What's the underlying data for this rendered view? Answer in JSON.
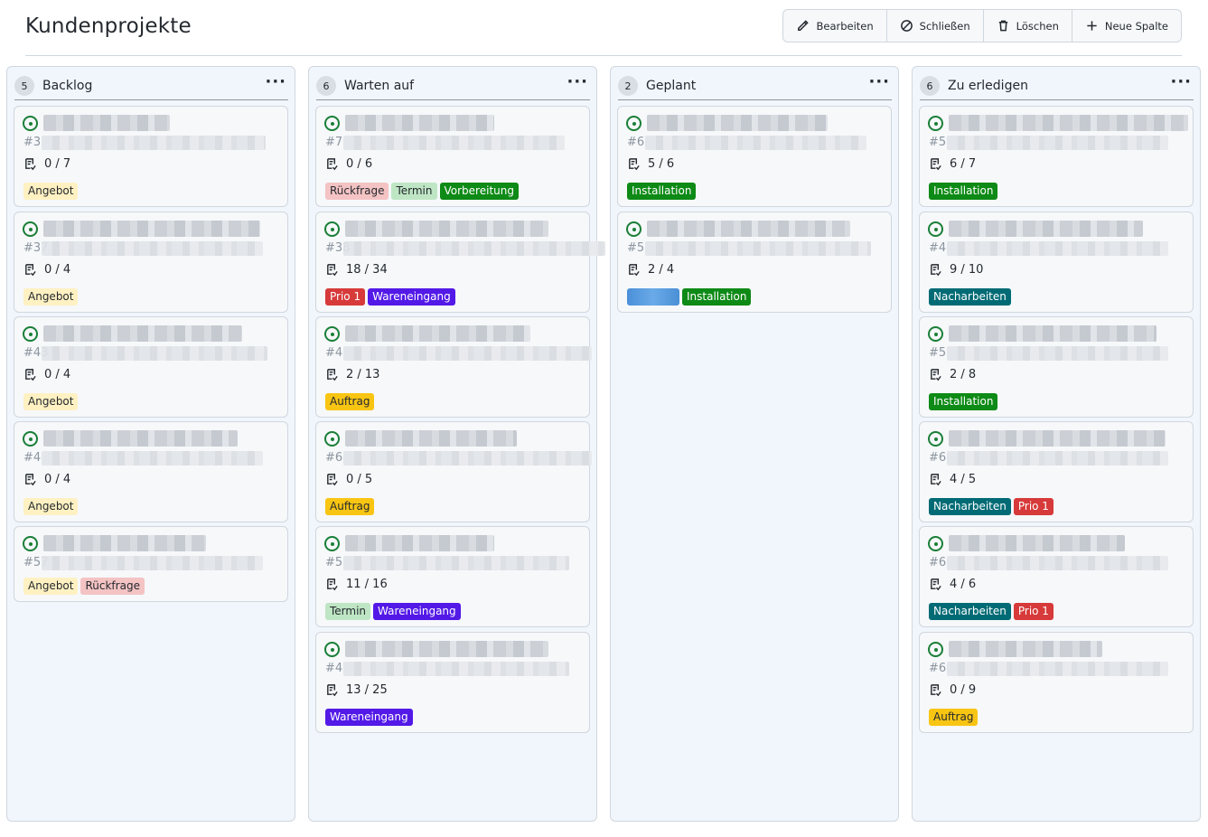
{
  "title": "Kundenprojekte",
  "toolbar": {
    "edit": "Bearbeiten",
    "close": "Schließen",
    "delete": "Löschen",
    "new_column": "Neue Spalte"
  },
  "columns": [
    {
      "name": "Backlog",
      "count": "5",
      "cards": [
        {
          "num": "#3",
          "tasks": "0 / 7",
          "labels": [
            {
              "text": "Angebot",
              "cls": "l-angebot"
            }
          ]
        },
        {
          "num": "#37",
          "tasks": "0 / 4",
          "labels": [
            {
              "text": "Angebot",
              "cls": "l-angebot"
            }
          ]
        },
        {
          "num": "#43",
          "tasks": "0 / 4",
          "labels": [
            {
              "text": "Angebot",
              "cls": "l-angebot"
            }
          ]
        },
        {
          "num": "#4",
          "tasks": "0 / 4",
          "labels": [
            {
              "text": "Angebot",
              "cls": "l-angebot"
            }
          ]
        },
        {
          "num": "#57",
          "tasks": "",
          "labels": [
            {
              "text": "Angebot",
              "cls": "l-angebot"
            },
            {
              "text": "Rückfrage",
              "cls": "l-rueckfrage"
            }
          ]
        }
      ]
    },
    {
      "name": "Warten auf",
      "count": "6",
      "cards": [
        {
          "num": "#7",
          "tasks": "0 / 6",
          "labels": [
            {
              "text": "Rückfrage",
              "cls": "l-rueckfrage"
            },
            {
              "text": "Termin",
              "cls": "l-termin"
            },
            {
              "text": "Vorbereitung",
              "cls": "l-vorbereitung"
            }
          ]
        },
        {
          "num": "#38",
          "tasks": "18 / 34",
          "labels": [
            {
              "text": "Prio 1",
              "cls": "l-prio1"
            },
            {
              "text": "Wareneingang",
              "cls": "l-wareneingang"
            }
          ]
        },
        {
          "num": "#4",
          "tasks": "2 / 13",
          "labels": [
            {
              "text": "Auftrag",
              "cls": "l-auftrag"
            }
          ]
        },
        {
          "num": "#6",
          "tasks": "0 / 5",
          "labels": [
            {
              "text": "Auftrag",
              "cls": "l-auftrag"
            }
          ]
        },
        {
          "num": "#5",
          "tasks": "11 / 16",
          "labels": [
            {
              "text": "Termin",
              "cls": "l-termin"
            },
            {
              "text": "Wareneingang",
              "cls": "l-wareneingang"
            }
          ]
        },
        {
          "num": "#4",
          "tasks": "13 / 25",
          "labels": [
            {
              "text": "Wareneingang",
              "cls": "l-wareneingang"
            }
          ]
        }
      ]
    },
    {
      "name": "Geplant",
      "count": "2",
      "cards": [
        {
          "num": "#6",
          "tasks": "5 / 6",
          "labels": [
            {
              "text": "Installation",
              "cls": "l-installation"
            }
          ]
        },
        {
          "num": "#5",
          "tasks": "2 / 4",
          "labels": [
            {
              "text": "",
              "cls": "l-blurred"
            },
            {
              "text": "Installation",
              "cls": "l-installation"
            }
          ]
        }
      ]
    },
    {
      "name": "Zu erledigen",
      "count": "6",
      "cards": [
        {
          "num": "#5",
          "tasks": "6 / 7",
          "labels": [
            {
              "text": "Installation",
              "cls": "l-installation"
            }
          ]
        },
        {
          "num": "#4",
          "tasks": "9 / 10",
          "labels": [
            {
              "text": "Nacharbeiten",
              "cls": "l-nacharbeiten"
            }
          ]
        },
        {
          "num": "#5",
          "tasks": "2 / 8",
          "labels": [
            {
              "text": "Installation",
              "cls": "l-installation"
            }
          ]
        },
        {
          "num": "#6",
          "tasks": "4 / 5",
          "labels": [
            {
              "text": "Nacharbeiten",
              "cls": "l-nacharbeiten"
            },
            {
              "text": "Prio 1",
              "cls": "l-prio1"
            }
          ]
        },
        {
          "num": "#6",
          "tasks": "4 / 6",
          "labels": [
            {
              "text": "Nacharbeiten",
              "cls": "l-nacharbeiten"
            },
            {
              "text": "Prio 1",
              "cls": "l-prio1"
            }
          ]
        },
        {
          "num": "#6",
          "tasks": "0 / 9",
          "labels": [
            {
              "text": "Auftrag",
              "cls": "l-auftrag"
            }
          ]
        }
      ]
    }
  ]
}
